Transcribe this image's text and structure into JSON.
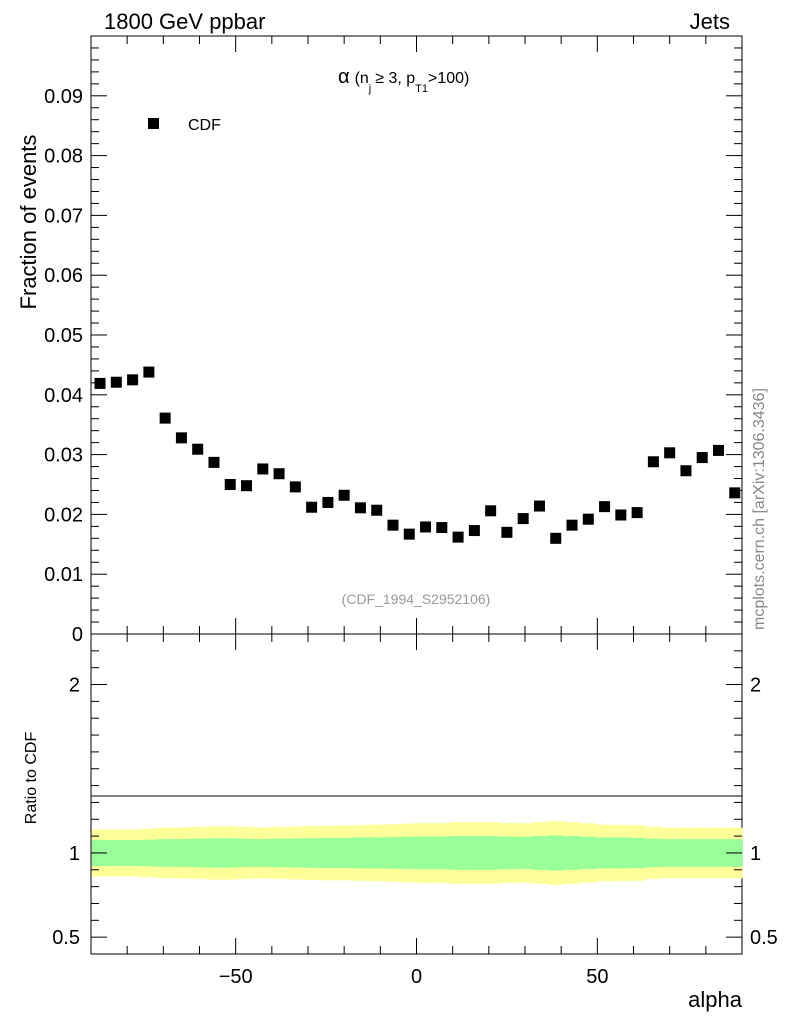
{
  "header": {
    "left": "1800 GeV ppbar",
    "right": "Jets"
  },
  "side_note": "mcplots.cern.ch [arXiv:1306.3436]",
  "chart_data": {
    "type": "scatter",
    "title": {
      "alpha": "α",
      "open": "(n",
      "sub_j": "j",
      "mid": "≥ 3, p",
      "sub_t1": "T1",
      "close": ">100)"
    },
    "legend": {
      "label": "CDF",
      "placement": "top-left"
    },
    "analysis_id": "(CDF_1994_S2952106)",
    "xlabel": "alpha",
    "ylabel": "Fraction of events",
    "ratio_ylabel": "Ratio to CDF",
    "xlim": [
      -90,
      90
    ],
    "ylim": [
      0,
      0.1
    ],
    "ratio_ylim": [
      0.4,
      2.3
    ],
    "x_ticks": [
      -50,
      0,
      50
    ],
    "x_tick_labels": [
      "−50",
      "0",
      "50"
    ],
    "y_ticks": [
      0.01,
      0.02,
      0.03,
      0.04,
      0.05,
      0.06,
      0.07,
      0.08,
      0.09
    ],
    "y_tick_labels": [
      "0.01",
      "0.02",
      "0.03",
      "0.04",
      "0.05",
      "0.06",
      "0.07",
      "0.08",
      "0.09"
    ],
    "y_zero_label": "0",
    "ratio_ticks": [
      0.5,
      1,
      2
    ],
    "ratio_tick_labels": [
      "0.5",
      "1",
      "2"
    ],
    "series": [
      {
        "name": "CDF",
        "x": [
          -87.5,
          -83,
          -78.5,
          -74,
          -69.5,
          -65,
          -60.5,
          -56,
          -51.5,
          -47,
          -42.5,
          -38,
          -33.5,
          -29,
          -24.5,
          -20,
          -15.5,
          -11,
          -6.5,
          -2,
          2.5,
          7,
          11.5,
          16,
          20.5,
          25,
          29.5,
          34,
          38.5,
          43,
          47.5,
          52,
          56.5,
          61,
          65.5,
          70,
          74.5,
          79,
          83.5,
          88
        ],
        "y": [
          0.0419,
          0.0421,
          0.0425,
          0.0438,
          0.0361,
          0.0328,
          0.0309,
          0.0287,
          0.025,
          0.0248,
          0.0276,
          0.0268,
          0.0246,
          0.0212,
          0.022,
          0.0232,
          0.0211,
          0.0207,
          0.0182,
          0.0167,
          0.0179,
          0.0178,
          0.0162,
          0.0173,
          0.0206,
          0.017,
          0.0193,
          0.0214,
          0.016,
          0.0182,
          0.0192,
          0.0213,
          0.0199,
          0.0203,
          0.0288,
          0.0303,
          0.0273,
          0.0295,
          0.0307,
          0.0236
        ]
      }
    ],
    "ratio_bands": {
      "x_edges": [
        -89.75,
        -85.25,
        -80.75,
        -76.25,
        -71.75,
        -67.25,
        -62.75,
        -58.25,
        -53.75,
        -49.25,
        -44.75,
        -40.25,
        -35.75,
        -31.25,
        -26.75,
        -22.25,
        -17.75,
        -13.25,
        -8.75,
        -4.25,
        0.25,
        4.75,
        9.25,
        13.75,
        18.25,
        22.75,
        27.25,
        31.75,
        36.25,
        40.75,
        45.25,
        49.75,
        54.25,
        58.75,
        63.25,
        67.75,
        72.25,
        76.75,
        81.25,
        85.75,
        90.25
      ],
      "inner": [
        0.078,
        0.077,
        0.077,
        0.079,
        0.082,
        0.083,
        0.085,
        0.087,
        0.087,
        0.084,
        0.083,
        0.085,
        0.086,
        0.088,
        0.089,
        0.09,
        0.092,
        0.093,
        0.094,
        0.096,
        0.097,
        0.097,
        0.1,
        0.1,
        0.1,
        0.097,
        0.096,
        0.1,
        0.104,
        0.1,
        0.096,
        0.092,
        0.092,
        0.09,
        0.085,
        0.082,
        0.082,
        0.082,
        0.082,
        0.082
      ],
      "outer": [
        0.14,
        0.14,
        0.14,
        0.144,
        0.15,
        0.152,
        0.154,
        0.158,
        0.158,
        0.154,
        0.152,
        0.155,
        0.157,
        0.16,
        0.162,
        0.163,
        0.165,
        0.168,
        0.17,
        0.175,
        0.177,
        0.177,
        0.183,
        0.183,
        0.183,
        0.178,
        0.176,
        0.183,
        0.19,
        0.183,
        0.176,
        0.168,
        0.167,
        0.165,
        0.155,
        0.15,
        0.15,
        0.15,
        0.15,
        0.15
      ]
    },
    "colors": {
      "inner_band": "#99ff99",
      "outer_band": "#ffff99",
      "marker": "#000000"
    }
  }
}
